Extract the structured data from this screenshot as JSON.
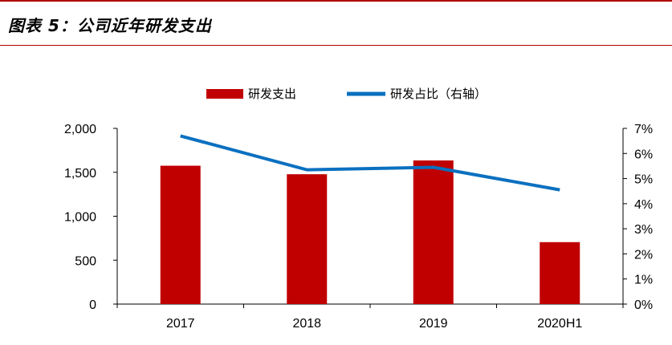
{
  "header": {
    "title": "图表 5：公司近年研发支出"
  },
  "colors": {
    "accent": "#b00000",
    "bar": "#c00000",
    "line": "#0a70c0"
  },
  "chart_data": {
    "type": "bar",
    "categories": [
      "2017",
      "2018",
      "2019",
      "2020H1"
    ],
    "series": [
      {
        "name": "研发支出",
        "type": "bar",
        "axis": "left",
        "values": [
          1575,
          1478,
          1635,
          705
        ]
      },
      {
        "name": "研发占比（右轴）",
        "type": "line",
        "axis": "right",
        "values": [
          6.7,
          5.35,
          5.45,
          4.55
        ]
      }
    ],
    "left_axis": {
      "ylim": [
        0,
        2000
      ],
      "ticks": [
        0,
        500,
        1000,
        1500,
        2000
      ],
      "tick_labels": [
        "0",
        "500",
        "1,000",
        "1,500",
        "2,000"
      ]
    },
    "right_axis": {
      "ylim": [
        0,
        7
      ],
      "ticks": [
        0,
        1,
        2,
        3,
        4,
        5,
        6,
        7
      ],
      "tick_labels": [
        "0%",
        "1%",
        "2%",
        "3%",
        "4%",
        "5%",
        "6%",
        "7%"
      ]
    },
    "legend": "top-center",
    "grid": false
  }
}
